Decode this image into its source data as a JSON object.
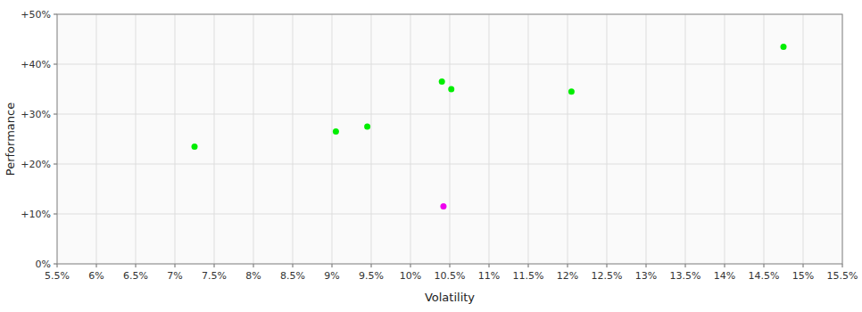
{
  "chart_data": {
    "type": "scatter",
    "x_label": "Volatility",
    "y_label": "Performance",
    "series": [
      {
        "color": "#00ee00",
        "x": [
          7.25,
          9.05,
          9.45,
          10.4,
          10.52,
          12.05,
          14.75
        ],
        "values": [
          23.5,
          26.5,
          27.5,
          36.5,
          35.0,
          34.5,
          43.5
        ]
      },
      {
        "color": "#ee00ee",
        "x": [
          10.42
        ],
        "values": [
          11.5
        ]
      }
    ],
    "xlim": [
      5.5,
      15.5
    ],
    "ylim": [
      0,
      50
    ],
    "xticks": [
      {
        "value": 5.5,
        "label": "5.5%"
      },
      {
        "value": 6.0,
        "label": "6%"
      },
      {
        "value": 6.5,
        "label": "6.5%"
      },
      {
        "value": 7.0,
        "label": "7%"
      },
      {
        "value": 7.5,
        "label": "7.5%"
      },
      {
        "value": 8.0,
        "label": "8%"
      },
      {
        "value": 8.5,
        "label": "8.5%"
      },
      {
        "value": 9.0,
        "label": "9%"
      },
      {
        "value": 9.5,
        "label": "9.5%"
      },
      {
        "value": 10.0,
        "label": "10%"
      },
      {
        "value": 10.5,
        "label": "10.5%"
      },
      {
        "value": 11.0,
        "label": "11%"
      },
      {
        "value": 11.5,
        "label": "11.5%"
      },
      {
        "value": 12.0,
        "label": "12%"
      },
      {
        "value": 12.5,
        "label": "12.5%"
      },
      {
        "value": 13.0,
        "label": "13%"
      },
      {
        "value": 13.5,
        "label": "13.5%"
      },
      {
        "value": 14.0,
        "label": "14%"
      },
      {
        "value": 14.5,
        "label": "14.5%"
      },
      {
        "value": 15.0,
        "label": "15%"
      },
      {
        "value": 15.5,
        "label": "15.5%"
      }
    ],
    "yticks": [
      {
        "value": 0,
        "label": "0%"
      },
      {
        "value": 10,
        "label": "+10%"
      },
      {
        "value": 20,
        "label": "+20%"
      },
      {
        "value": 30,
        "label": "+30%"
      },
      {
        "value": 40,
        "label": "+40%"
      },
      {
        "value": 50,
        "label": "+50%"
      }
    ],
    "grid": true
  }
}
